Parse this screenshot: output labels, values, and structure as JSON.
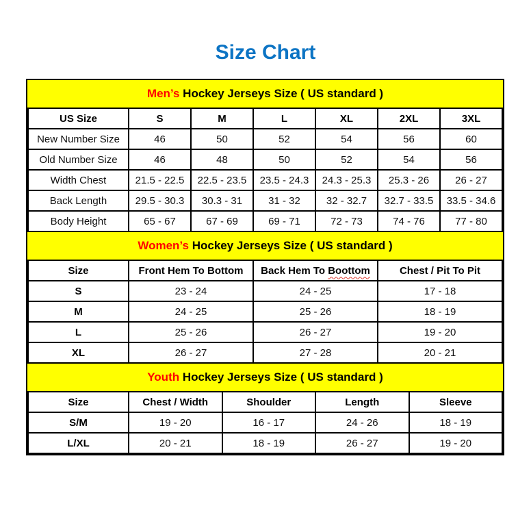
{
  "title": "Size Chart",
  "colors": {
    "title": "#0C74C4",
    "band_bg": "#FFFF00",
    "accent": "#FF0000",
    "border": "#000000"
  },
  "sections": [
    {
      "id": "mens",
      "title_accent": "Men’s",
      "title_rest": " Hockey Jerseys Size ( US standard )",
      "columns": [
        "US Size",
        "S",
        "M",
        "L",
        "XL",
        "2XL",
        "3XL"
      ],
      "row_label_bold": false,
      "rows": [
        {
          "label": "New Number Size",
          "values": [
            "46",
            "50",
            "52",
            "54",
            "56",
            "60"
          ]
        },
        {
          "label": "Old Number Size",
          "values": [
            "46",
            "48",
            "50",
            "52",
            "54",
            "56"
          ]
        },
        {
          "label": "Width Chest",
          "values": [
            "21.5 - 22.5",
            "22.5 - 23.5",
            "23.5 - 24.3",
            "24.3 - 25.3",
            "25.3 - 26",
            "26 - 27"
          ]
        },
        {
          "label": "Back Length",
          "values": [
            "29.5 - 30.3",
            "30.3 - 31",
            "31 - 32",
            "32 - 32.7",
            "32.7 - 33.5",
            "33.5 - 34.6"
          ]
        },
        {
          "label": "Body Height",
          "values": [
            "65 - 67",
            "67 - 69",
            "69 - 71",
            "72 - 73",
            "74 - 76",
            "77 - 80"
          ]
        }
      ]
    },
    {
      "id": "womens",
      "title_accent": "Women’s",
      "title_rest": " Hockey Jerseys Size ( US standard )",
      "columns": [
        "Size",
        "Front Hem To Bottom",
        "Back Hem To Boottom",
        "Chest / Pit To Pit"
      ],
      "squiggle_word": "Boottom",
      "row_label_bold": true,
      "rows": [
        {
          "label": "S",
          "values": [
            "23 - 24",
            "24 - 25",
            "17 - 18"
          ]
        },
        {
          "label": "M",
          "values": [
            "24 - 25",
            "25 - 26",
            "18 - 19"
          ]
        },
        {
          "label": "L",
          "values": [
            "25 - 26",
            "26 - 27",
            "19 - 20"
          ]
        },
        {
          "label": "XL",
          "values": [
            "26 - 27",
            "27 - 28",
            "20 - 21"
          ]
        }
      ]
    },
    {
      "id": "youth",
      "title_accent": "Youth",
      "title_rest": " Hockey Jerseys Size ( US standard )",
      "columns": [
        "Size",
        "Chest / Width",
        "Shoulder",
        "Length",
        "Sleeve"
      ],
      "row_label_bold": true,
      "rows": [
        {
          "label": "S/M",
          "values": [
            "19 - 20",
            "16 - 17",
            "24 - 26",
            "18 - 19"
          ]
        },
        {
          "label": "L/XL",
          "values": [
            "20 - 21",
            "18 - 19",
            "26 - 27",
            "19 - 20"
          ]
        }
      ]
    }
  ]
}
